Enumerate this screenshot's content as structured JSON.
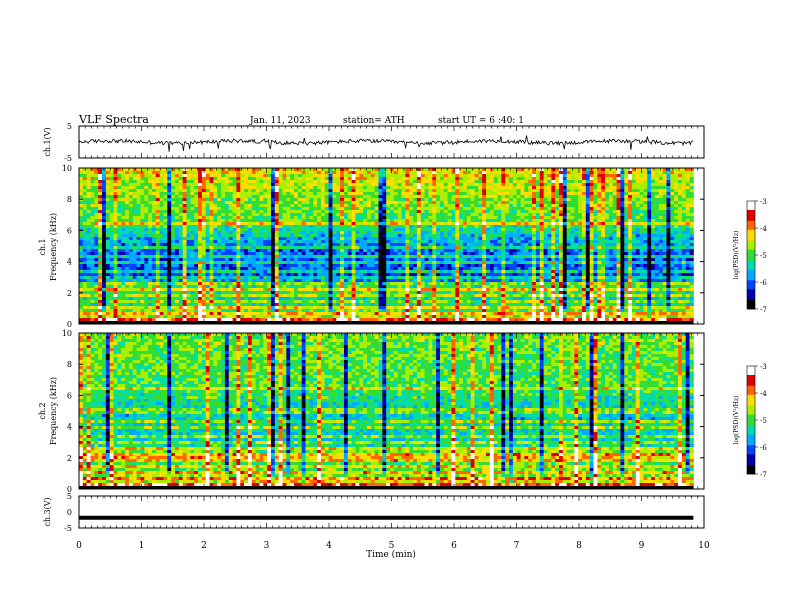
{
  "header": {
    "title": "VLF  Spectra",
    "date": "Jan.  11,  2023",
    "station": "station= ATH",
    "start": "start  UT  =   6  :40: 1"
  },
  "chart_data": [
    {
      "type": "line",
      "name": "ch1-waveform",
      "ylabel": "ch.1(V)",
      "ylim": [
        -5,
        5
      ],
      "yticks": [
        "5",
        "-5"
      ],
      "xlim": [
        0,
        10
      ],
      "noise_level": 1.2
    },
    {
      "type": "heatmap",
      "name": "ch1-spectrogram",
      "ylabel_channel": "ch.1",
      "ylabel": "Frequency  (kHz)",
      "ylim": [
        0,
        10
      ],
      "yticks": [
        "0",
        "2",
        "4",
        "6",
        "8",
        "10"
      ],
      "xlim": [
        0,
        9.83
      ],
      "colorbar": {
        "label": "log(PSD)(V²/Hz)",
        "range": [
          -7,
          -3
        ],
        "ticks": [
          "-3",
          "-4",
          "-5",
          "-6",
          "-7"
        ]
      },
      "colors": [
        "#000000",
        "#0000aa",
        "#0044ff",
        "#00aaff",
        "#00ddaa",
        "#33dd33",
        "#aaee00",
        "#ffdd00",
        "#ff6600",
        "#dd0000",
        "#ffffff"
      ],
      "bands_khz": [
        0.3,
        0.6,
        1.0,
        1.4,
        1.8,
        2.2,
        2.6,
        3.0,
        3.4,
        3.9,
        4.4,
        4.9,
        6.5
      ],
      "base_level_by_khz": [
        [
          0,
          -3.8
        ],
        [
          0.5,
          -4.6
        ],
        [
          1.5,
          -5.5
        ],
        [
          2.3,
          -5.0
        ],
        [
          3.0,
          -6.1
        ],
        [
          5.0,
          -5.9
        ],
        [
          6.5,
          -5.0
        ],
        [
          8.5,
          -4.7
        ],
        [
          10,
          -4.3
        ]
      ]
    },
    {
      "type": "heatmap",
      "name": "ch2-spectrogram",
      "ylabel_channel": "ch.2",
      "ylabel": "Frequency  (kHz)",
      "ylim": [
        0,
        10
      ],
      "yticks": [
        "0",
        "2",
        "4",
        "6",
        "8",
        "10"
      ],
      "xlim": [
        0,
        9.83
      ],
      "colorbar": {
        "label": "log(PSD)(V²/Hz)",
        "range": [
          -7,
          -3
        ],
        "ticks": [
          "-3",
          "-4",
          "-5",
          "-6",
          "-7"
        ]
      },
      "colors": [
        "#000000",
        "#0000aa",
        "#0044ff",
        "#00aaff",
        "#00ddaa",
        "#33dd33",
        "#aaee00",
        "#ffdd00",
        "#ff6600",
        "#dd0000",
        "#ffffff"
      ],
      "bands_khz": [
        0.3,
        0.6,
        1.0,
        1.4,
        1.9,
        2.1,
        2.6,
        3.0,
        3.4,
        3.9,
        4.4,
        5.0,
        6.4
      ],
      "base_level_by_khz": [
        [
          0,
          -3.9
        ],
        [
          0.5,
          -4.4
        ],
        [
          1.5,
          -5.0
        ],
        [
          2.3,
          -4.7
        ],
        [
          3.0,
          -5.4
        ],
        [
          5.0,
          -5.5
        ],
        [
          6.5,
          -5.0
        ],
        [
          8.5,
          -4.9
        ],
        [
          10,
          -4.8
        ]
      ]
    },
    {
      "type": "line",
      "name": "ch3-waveform",
      "ylabel": "ch.3(V)",
      "ylim": [
        -5,
        5
      ],
      "yticks": [
        "5",
        "0",
        "-5"
      ],
      "xlim": [
        0,
        10
      ],
      "constant_value": -1.8
    }
  ],
  "xaxis": {
    "label": "Time  (min)",
    "ticks": [
      "0",
      "1",
      "2",
      "3",
      "4",
      "5",
      "6",
      "7",
      "8",
      "9",
      "10"
    ],
    "range": [
      0,
      10
    ]
  }
}
